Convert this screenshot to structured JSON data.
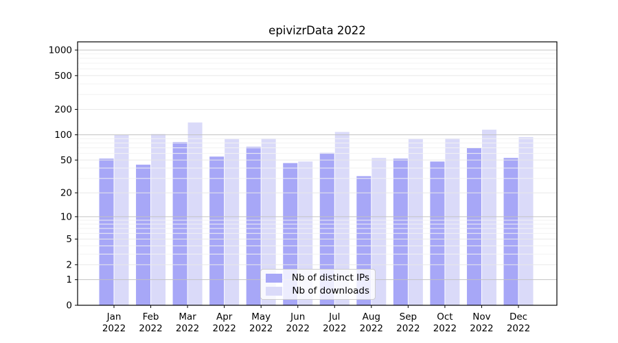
{
  "chart_data": {
    "type": "bar",
    "title": "epivizrData 2022",
    "categories": [
      "Jan",
      "Feb",
      "Mar",
      "Apr",
      "May",
      "Jun",
      "Jul",
      "Aug",
      "Sep",
      "Oct",
      "Nov",
      "Dec"
    ],
    "year_label": "2022",
    "series": [
      {
        "name": "Nb of distinct IPs",
        "color": "#a7a7f7",
        "values": [
          52,
          44,
          82,
          55,
          72,
          46,
          61,
          32,
          52,
          48,
          70,
          53
        ]
      },
      {
        "name": "Nb of downloads",
        "color": "#dadaf9",
        "values": [
          100,
          102,
          140,
          89,
          90,
          48,
          108,
          53,
          89,
          91,
          115,
          94
        ]
      }
    ],
    "yscale": "log1p",
    "yticks": [
      0,
      1,
      2,
      5,
      10,
      20,
      50,
      100,
      200,
      500,
      1000
    ],
    "ytick_major_decades": [
      1,
      10,
      100,
      1000
    ],
    "yminor_ticks": [
      3,
      4,
      6,
      7,
      8,
      9,
      30,
      40,
      60,
      70,
      80,
      90,
      300,
      400,
      600,
      700,
      800,
      900
    ],
    "ylim": [
      0,
      1250
    ],
    "grid": true,
    "legend_position": "bottom-center"
  },
  "colors": {
    "axis": "#000000",
    "tick_label": "#000000",
    "grid_decade": "#c3c3c3",
    "grid_labeled": "#e8e8e8",
    "grid_minor": "#f2f2f2",
    "background": "#ffffff",
    "legend_border": "#cccccc"
  }
}
